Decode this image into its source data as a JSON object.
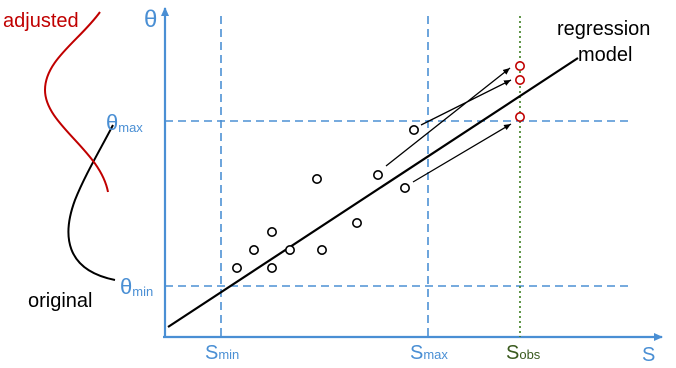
{
  "labels": {
    "adjusted": "adjusted",
    "original": "original",
    "theta": "θ",
    "theta_max_main": "θ",
    "theta_max_sub": "max",
    "theta_min_main": "θ",
    "theta_min_sub": "min",
    "s_axis": "S",
    "s_min_main": "S",
    "s_min_sub": "min",
    "s_max_main": "S",
    "s_max_sub": "max",
    "s_obs_main": "S",
    "s_obs_sub": "obs",
    "regression_line1": "regression",
    "regression_line2": "model"
  },
  "colors": {
    "axis": "#4a8fd4",
    "guide": "#4a8fd4",
    "obs_line": "#3a7d1e",
    "adjusted": "#c00000",
    "black": "#000000",
    "axis_label": "#4a8fd4",
    "obs_label": "#3a5a1e"
  },
  "points": {
    "original": [
      {
        "s": 237,
        "t": 268
      },
      {
        "s": 254,
        "t": 250
      },
      {
        "s": 272,
        "t": 232
      },
      {
        "s": 272,
        "t": 268
      },
      {
        "s": 290,
        "t": 250
      },
      {
        "s": 317,
        "t": 179
      },
      {
        "s": 322,
        "t": 250
      },
      {
        "s": 357,
        "t": 223
      },
      {
        "s": 378,
        "t": 175
      },
      {
        "s": 405,
        "t": 188
      },
      {
        "s": 414,
        "t": 130
      }
    ],
    "adjusted": [
      {
        "s": 520,
        "t": 66
      },
      {
        "s": 520,
        "t": 80
      },
      {
        "s": 520,
        "t": 117
      }
    ]
  }
}
